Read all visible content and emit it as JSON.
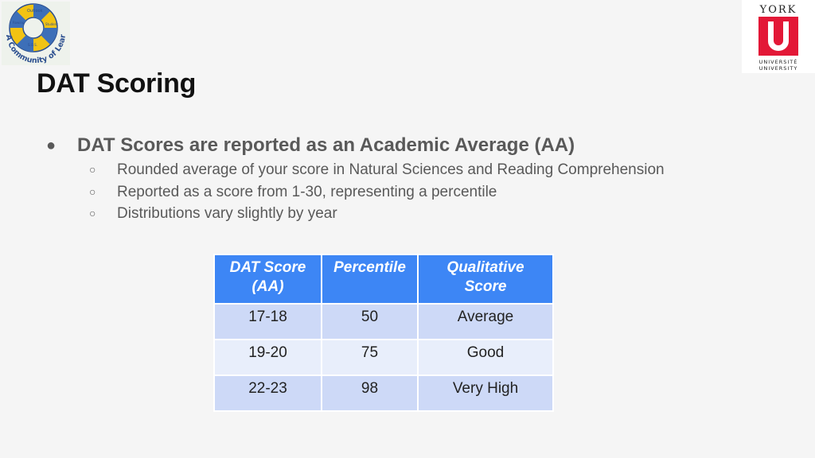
{
  "logos": {
    "left": {
      "ring_text": "A Community of Learning",
      "small_text": [
        "Outlook",
        "Rowing",
        "Student",
        "Service",
        "S.O.S."
      ]
    },
    "right": {
      "top": "YORK",
      "mark": "U",
      "line1": "UNIVERSITÉ",
      "line2": "UNIVERSITY"
    }
  },
  "slide": {
    "title": "DAT Scoring",
    "bullet": "DAT Scores are reported as an Academic Average (AA)",
    "subbullets": [
      "Rounded average of your score in Natural Sciences and Reading Comprehension",
      "Reported as a score from 1-30, representing a percentile",
      "Distributions vary slightly by year"
    ]
  },
  "table": {
    "headers": [
      [
        "DAT Score",
        "(AA)"
      ],
      [
        "Percentile"
      ],
      [
        "Qualitative",
        "Score"
      ]
    ],
    "rows": [
      [
        "17-18",
        "50",
        "Average"
      ],
      [
        "19-20",
        "75",
        "Good"
      ],
      [
        "22-23",
        "98",
        "Very High"
      ]
    ]
  },
  "colors": {
    "header_blue": "#3d86f5",
    "row_dark": "#cdd9f7",
    "row_light": "#e8eefb",
    "york_red": "#e31837"
  }
}
